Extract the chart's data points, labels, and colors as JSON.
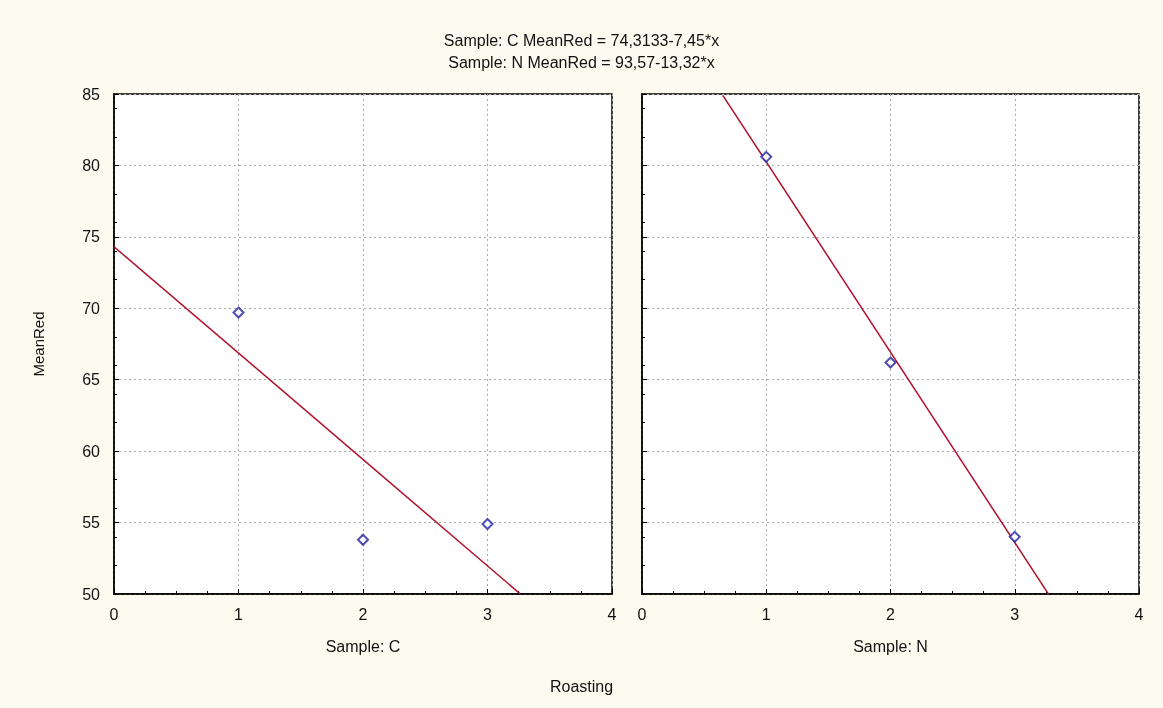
{
  "chart_data": [
    {
      "type": "scatter",
      "title": "Sample: C MeanRed = 74,3133-7,45*x",
      "xlabel": "Sample: C",
      "ylabel": "MeanRed",
      "annotations": [
        "Roasting"
      ],
      "xlim": [
        0,
        4
      ],
      "xticks": [
        0,
        1,
        2,
        3,
        4
      ],
      "ylim": [
        50,
        85
      ],
      "yticks": [
        50,
        55,
        60,
        65,
        70,
        75,
        80,
        85
      ],
      "grid": true,
      "series": [
        {
          "marker": "diamond",
          "color": "#2020a0",
          "x": [
            1,
            2,
            3
          ],
          "values": [
            69.7,
            53.8,
            54.9
          ]
        },
        {
          "type": "line",
          "marker": "none",
          "color": "#b0102a",
          "x": [
            0,
            3.26
          ],
          "values": [
            74.31,
            50.03
          ]
        }
      ]
    },
    {
      "type": "scatter",
      "title": "Sample: N MeanRed = 93,57-13,32*x",
      "xlabel": "Sample: N",
      "xlim": [
        0,
        4
      ],
      "xticks": [
        0,
        1,
        2,
        3,
        4
      ],
      "ylim": [
        50,
        85
      ],
      "yticks": [
        50,
        55,
        60,
        65,
        70,
        75,
        80,
        85
      ],
      "grid": true,
      "tick_labels": "x",
      "series": [
        {
          "marker": "diamond",
          "color": "#2020a0",
          "x": [
            1,
            2,
            3
          ],
          "values": [
            80.6,
            66.2,
            54.0
          ]
        },
        {
          "type": "line",
          "marker": "none",
          "color": "#b0102a",
          "x": [
            0.65,
            3.27
          ],
          "values": [
            84.91,
            50.01
          ]
        }
      ]
    }
  ]
}
